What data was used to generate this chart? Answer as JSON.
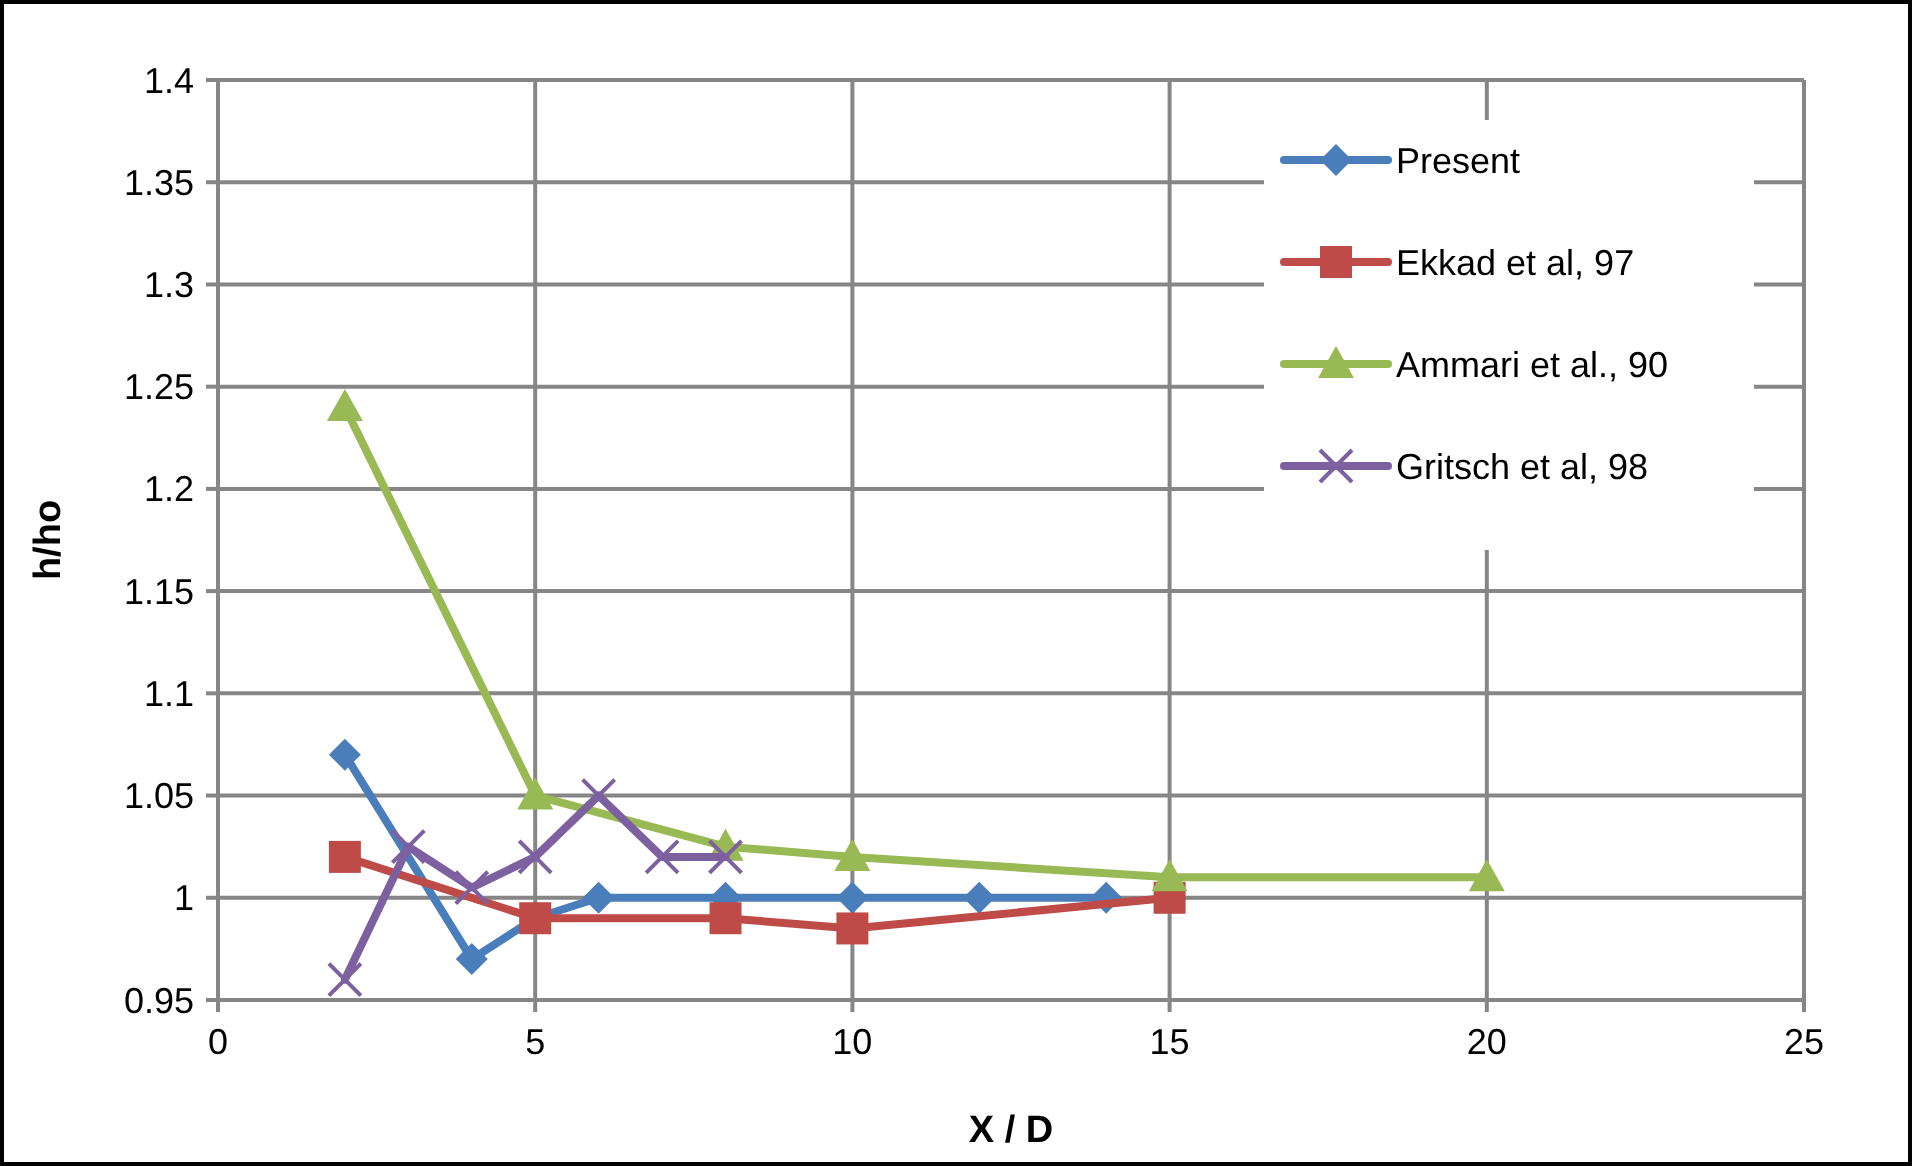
{
  "chart_data": {
    "type": "line",
    "xlabel": "X / D",
    "ylabel": "h/ho",
    "xlim": [
      0,
      25
    ],
    "xticks": [
      0,
      5,
      10,
      15,
      20,
      25
    ],
    "ylim": [
      0.95,
      1.4
    ],
    "yticks": [
      {
        "value": 0.95,
        "label": "0.95"
      },
      {
        "value": 1,
        "label": "1"
      },
      {
        "value": 1.05,
        "label": "1.05"
      },
      {
        "value": 1.1,
        "label": "1.1"
      },
      {
        "value": 1.15,
        "label": "1.15"
      },
      {
        "value": 1.2,
        "label": "1.2"
      },
      {
        "value": 1.25,
        "label": "1.25"
      },
      {
        "value": 1.3,
        "label": "1.3"
      },
      {
        "value": 1.35,
        "label": "1.35"
      },
      {
        "value": 1.4,
        "label": "1.4"
      }
    ],
    "grid": true,
    "legend": "top right",
    "series": [
      {
        "name": "Present",
        "color": "#4a7ebb",
        "marker": "diamond",
        "x": [
          2,
          4,
          5,
          6,
          8,
          10,
          12,
          14
        ],
        "values": [
          1.07,
          0.97,
          0.99,
          1.0,
          1.0,
          1.0,
          1.0,
          1.0
        ]
      },
      {
        "name": "Ekkad et al, 97",
        "color": "#be4b48",
        "marker": "square",
        "x": [
          2,
          5,
          8,
          10,
          15
        ],
        "values": [
          1.02,
          0.99,
          0.99,
          0.985,
          1.0
        ]
      },
      {
        "name": "Ammari et al., 90",
        "color": "#98b954",
        "marker": "triangle",
        "x": [
          2,
          5,
          8,
          10,
          15,
          20
        ],
        "values": [
          1.24,
          1.05,
          1.025,
          1.02,
          1.01,
          1.01
        ]
      },
      {
        "name": "Gritsch et al, 98",
        "color": "#7d60a0",
        "marker": "cross",
        "x": [
          2,
          3,
          4,
          5,
          6,
          7,
          8
        ],
        "values": [
          0.96,
          1.025,
          1.005,
          1.02,
          1.05,
          1.02,
          1.02
        ]
      }
    ]
  }
}
